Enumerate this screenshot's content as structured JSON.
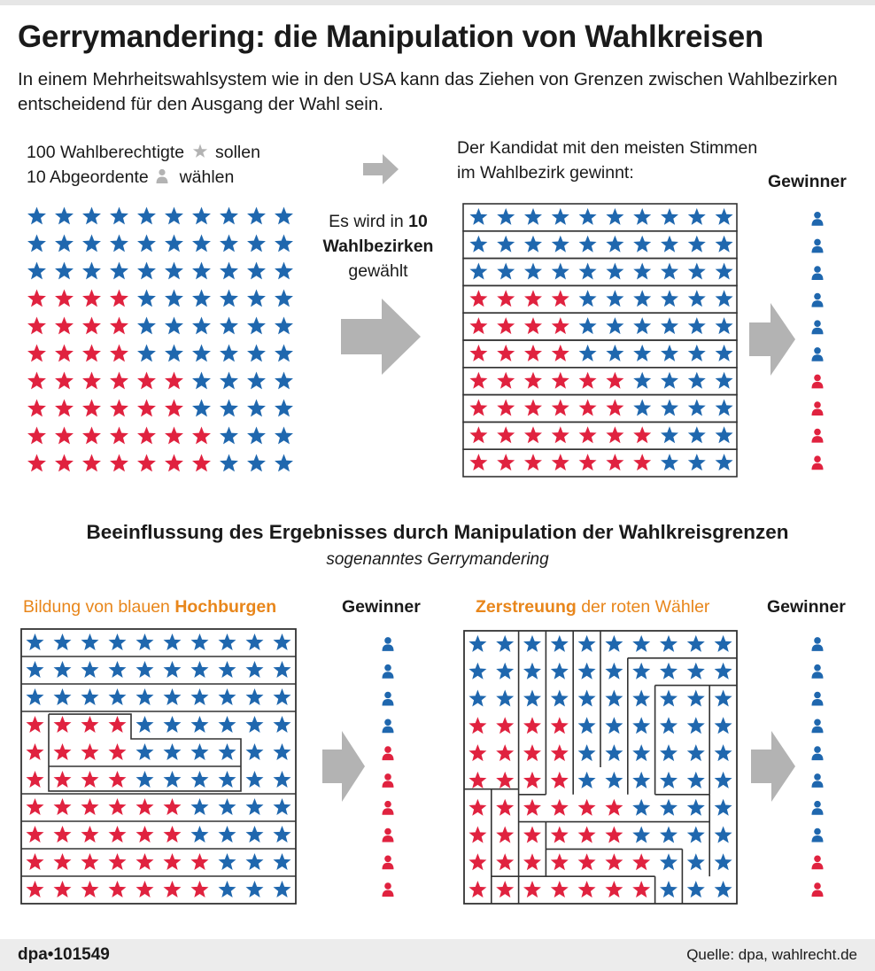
{
  "header": {
    "title": "Gerrymandering: die Manipulation von Wahlkreisen",
    "subtitle": "In einem Mehrheitswahlsystem wie in den USA kann das Ziehen von Grenzen zwischen Wahlbezirken entscheidend für den Ausgang der Wahl sein."
  },
  "legend": {
    "line1_text": "100 Wahlberechtigte",
    "line1_end": "sollen",
    "line2_text": "10 Abgeordente",
    "line2_end": "wählen"
  },
  "middle": {
    "text_a": "Es wird in",
    "text_num": "10",
    "text_b": "Wahlbezirken",
    "text_c": "gewählt"
  },
  "top_right": {
    "caption": "Der Kandidat mit den meisten Stimmen im Wahlbezirk gewinnt:",
    "winner_label": "Gewinner"
  },
  "section2": {
    "heading": "Beeinflussung des Ergebnisses durch Manipulation der Wahlkreisgrenzen",
    "subheading": "sogenanntes Gerrymandering"
  },
  "panel_left": {
    "label_plain": "Bildung von blauen",
    "label_bold": "Hochburgen",
    "winner_label": "Gewinner"
  },
  "panel_right": {
    "label_bold": "Zerstreuung",
    "label_plain": "der roten Wähler",
    "winner_label": "Gewinner"
  },
  "colors": {
    "blue": "#1f67ae",
    "red": "#e0223f",
    "gray": "#b3b3b3",
    "orange": "#e8861b"
  },
  "voter_rows_red_count": [
    0,
    0,
    0,
    4,
    4,
    4,
    6,
    6,
    7,
    7
  ],
  "winners": {
    "fair": [
      "blue",
      "blue",
      "blue",
      "blue",
      "blue",
      "blue",
      "red",
      "red",
      "red",
      "red"
    ],
    "strongholds": [
      "blue",
      "blue",
      "blue",
      "blue",
      "red",
      "red",
      "red",
      "red",
      "red",
      "red"
    ],
    "scatter": [
      "blue",
      "blue",
      "blue",
      "blue",
      "blue",
      "blue",
      "blue",
      "blue",
      "red",
      "red"
    ]
  },
  "footer": {
    "logo": "dpa•101549",
    "source": "Quelle: dpa, wahlrecht.de"
  }
}
